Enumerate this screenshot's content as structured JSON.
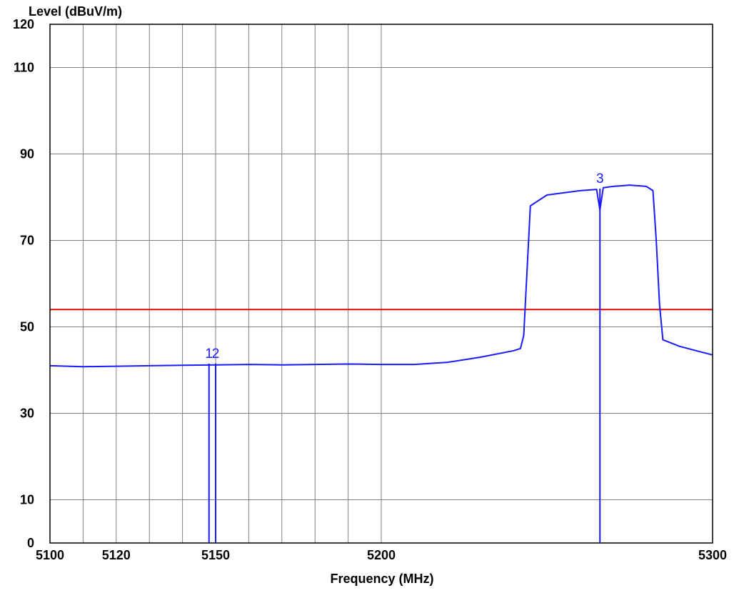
{
  "chart_data": {
    "type": "line",
    "title": "",
    "ylabel": "Level (dBuV/m)",
    "xlabel": "Frequency (MHz)",
    "xlim": [
      5100,
      5300
    ],
    "ylim": [
      0,
      120
    ],
    "x_ticks": [
      {
        "value": 5100,
        "label": "5100"
      },
      {
        "value": 5120,
        "label": "5120"
      },
      {
        "value": 5150,
        "label": "5150"
      },
      {
        "value": 5200,
        "label": "5200"
      },
      {
        "value": 5300,
        "label": "5300"
      }
    ],
    "y_ticks": [
      {
        "value": 0,
        "label": "0"
      },
      {
        "value": 10,
        "label": "10"
      },
      {
        "value": 30,
        "label": "30"
      },
      {
        "value": 50,
        "label": "50"
      },
      {
        "value": 70,
        "label": "70"
      },
      {
        "value": 90,
        "label": "90"
      },
      {
        "value": 110,
        "label": "110"
      },
      {
        "value": 120,
        "label": "120"
      }
    ],
    "x_grid": [
      5110,
      5120,
      5130,
      5140,
      5150,
      5160,
      5170,
      5180,
      5190,
      5200,
      5300
    ],
    "y_grid": [
      0,
      10,
      30,
      50,
      70,
      90,
      110,
      120
    ],
    "grid": true,
    "limit_line": {
      "value": 54,
      "color": "#e00000"
    },
    "series": [
      {
        "color": "#1a1aff",
        "x": [
          5100,
          5110,
          5120,
          5130,
          5140,
          5150,
          5160,
          5170,
          5180,
          5190,
          5200,
          5210,
          5220,
          5230,
          5240,
          5242,
          5243,
          5245,
          5250,
          5255,
          5260,
          5265,
          5266,
          5267,
          5270,
          5275,
          5280,
          5282,
          5283,
          5284,
          5285,
          5290,
          5295,
          5300
        ],
        "y": [
          41,
          40.8,
          40.9,
          41,
          41.1,
          41.2,
          41.3,
          41.2,
          41.3,
          41.4,
          41.3,
          41.3,
          41.8,
          43,
          44.5,
          45,
          48,
          78,
          80.5,
          81,
          81.5,
          81.8,
          77,
          82.2,
          82.5,
          82.8,
          82.5,
          81.5,
          70,
          55,
          47,
          45.5,
          44.5,
          43.5
        ]
      }
    ],
    "markers": [
      {
        "label": "1",
        "x": 5148,
        "y": 41.5
      },
      {
        "label": "2",
        "x": 5150,
        "y": 41.5
      },
      {
        "label": "3",
        "x": 5266,
        "y": 82
      }
    ]
  }
}
